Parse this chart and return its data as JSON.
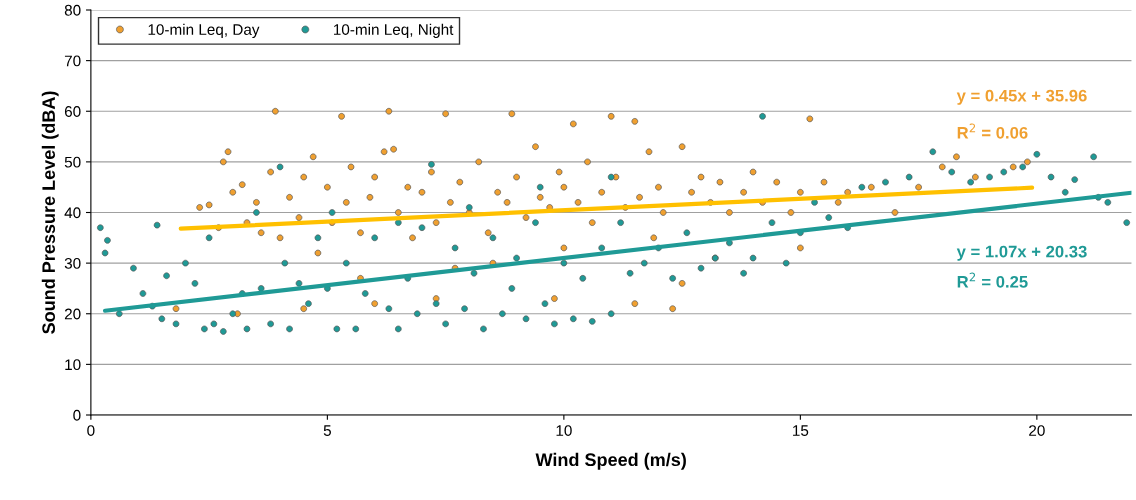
{
  "chart_data": {
    "type": "scatter",
    "xlabel": "Wind Speed (m/s)",
    "ylabel": "Sound Pressure Level (dBA)",
    "xlim": [
      0,
      22
    ],
    "ylim": [
      0,
      80
    ],
    "xticks": [
      0,
      5,
      10,
      15,
      20
    ],
    "yticks": [
      0,
      10,
      20,
      30,
      40,
      50,
      60,
      70,
      80
    ],
    "grid": "y",
    "legend": "top left",
    "series": [
      {
        "name": "10-min Leq, Day",
        "color": "#f0a030",
        "marker": "circle",
        "x": [
          2.3,
          2.5,
          2.8,
          2.9,
          2.7,
          3.0,
          3.2,
          3.3,
          3.5,
          3.6,
          3.9,
          3.8,
          4.0,
          4.2,
          4.4,
          4.5,
          4.7,
          4.8,
          5.0,
          5.1,
          5.3,
          5.5,
          5.4,
          5.7,
          5.9,
          6.0,
          6.2,
          6.3,
          6.4,
          6.5,
          6.7,
          6.8,
          7.0,
          7.2,
          7.3,
          7.5,
          7.6,
          7.8,
          8.0,
          8.2,
          8.4,
          8.6,
          8.9,
          8.8,
          9.0,
          9.2,
          9.4,
          9.5,
          9.7,
          9.9,
          10.0,
          10.2,
          10.3,
          10.5,
          10.6,
          10.8,
          11.0,
          11.1,
          11.3,
          11.5,
          11.6,
          11.8,
          12.0,
          12.1,
          12.3,
          12.5,
          12.7,
          12.9,
          13.1,
          13.3,
          13.5,
          13.8,
          14.0,
          14.2,
          14.5,
          14.8,
          15.0,
          15.2,
          15.5,
          15.8,
          16.0,
          16.5,
          17.0,
          17.5,
          18.0,
          18.3,
          18.7,
          19.5,
          19.8,
          1.8,
          3.1,
          4.5,
          6.0,
          7.3,
          9.8,
          11.5,
          15.0,
          8.5,
          10.0,
          11.9,
          5.7,
          7.7,
          12.5,
          13.2
        ],
        "values": [
          41,
          41.5,
          50,
          52,
          37,
          44,
          45.5,
          38,
          42,
          36,
          60,
          48,
          35,
          43,
          39,
          47,
          51,
          32,
          45,
          38,
          59,
          49,
          42,
          36,
          43,
          47,
          52,
          60,
          52.5,
          40,
          45,
          35,
          44,
          48,
          38,
          59.5,
          42,
          46,
          40,
          50,
          36,
          44,
          59.5,
          42,
          47,
          39,
          53,
          43,
          41,
          48,
          45,
          57.5,
          42,
          50,
          38,
          44,
          59,
          47,
          41,
          58,
          43,
          52,
          45,
          40,
          21,
          53,
          44,
          47,
          42,
          46,
          40,
          44,
          48,
          42,
          46,
          40,
          44,
          58.5,
          46,
          42,
          44,
          45,
          40,
          45,
          49,
          51,
          47,
          49,
          50,
          21,
          20,
          21,
          22,
          23,
          23,
          22,
          33,
          30,
          33,
          35,
          27,
          29,
          26,
          31
        ]
      },
      {
        "name": "10-min Leq, Night",
        "color": "#1f9a96",
        "marker": "circle",
        "x": [
          0.2,
          0.3,
          0.35,
          0.6,
          0.9,
          1.1,
          1.3,
          1.4,
          1.5,
          1.6,
          1.8,
          2.0,
          2.2,
          2.4,
          2.5,
          2.6,
          2.8,
          3.0,
          3.2,
          3.3,
          3.5,
          3.6,
          3.8,
          4.0,
          4.1,
          4.2,
          4.4,
          4.6,
          4.8,
          5.0,
          5.2,
          5.4,
          5.6,
          5.8,
          6.0,
          6.3,
          6.5,
          6.7,
          6.9,
          7.0,
          7.2,
          7.3,
          7.5,
          7.7,
          7.9,
          8.1,
          8.3,
          8.5,
          8.7,
          8.9,
          9.0,
          9.2,
          9.4,
          9.6,
          9.8,
          10.0,
          10.2,
          10.4,
          10.6,
          10.8,
          11.0,
          11.2,
          11.4,
          11.7,
          12.0,
          12.3,
          12.6,
          12.9,
          13.2,
          13.5,
          13.8,
          14.2,
          14.0,
          14.4,
          14.7,
          15.0,
          15.3,
          15.6,
          16.0,
          16.3,
          16.8,
          17.3,
          17.8,
          18.2,
          18.6,
          19.0,
          19.3,
          19.7,
          20.0,
          20.3,
          20.6,
          20.8,
          21.2,
          21.3,
          21.5,
          21.9,
          8.0,
          9.5,
          11.0,
          6.5,
          5.1
        ],
        "values": [
          37,
          32,
          34.5,
          20,
          29,
          24,
          21.5,
          37.5,
          19,
          27.5,
          18,
          30,
          26,
          17,
          35,
          18,
          16.5,
          20,
          24,
          17,
          40,
          25,
          18,
          49,
          30,
          17,
          26,
          22,
          35,
          25,
          17,
          30,
          17,
          24,
          35,
          21,
          17,
          27,
          20,
          37,
          49.5,
          22,
          18,
          33,
          21,
          28,
          17,
          35,
          20,
          25,
          31,
          19,
          38,
          22,
          18,
          30,
          19,
          27,
          18.5,
          33,
          20,
          38,
          28,
          30,
          33,
          27,
          36,
          29,
          31,
          34,
          28,
          59,
          31,
          38,
          30,
          36,
          42,
          39,
          37,
          45,
          46,
          47,
          52,
          48,
          46,
          47,
          48,
          49,
          51.5,
          47,
          44,
          46.5,
          51,
          43,
          42,
          38,
          41,
          45,
          47,
          38,
          40
        ]
      },
      {
        "type": "line",
        "color": "#ffc000",
        "x": [
          1.9,
          19.9
        ],
        "values": [
          36.8,
          44.9
        ]
      },
      {
        "type": "line",
        "color": "#1f9a96",
        "x": [
          0.3,
          22
        ],
        "values": [
          20.6,
          43.9
        ]
      }
    ],
    "annotations": [
      "y = 0.45x + 35.96",
      "R$^{2}$ = 0.06",
      "y = 1.07x + 20.33",
      "R$^{2}$ = 0.25"
    ]
  }
}
